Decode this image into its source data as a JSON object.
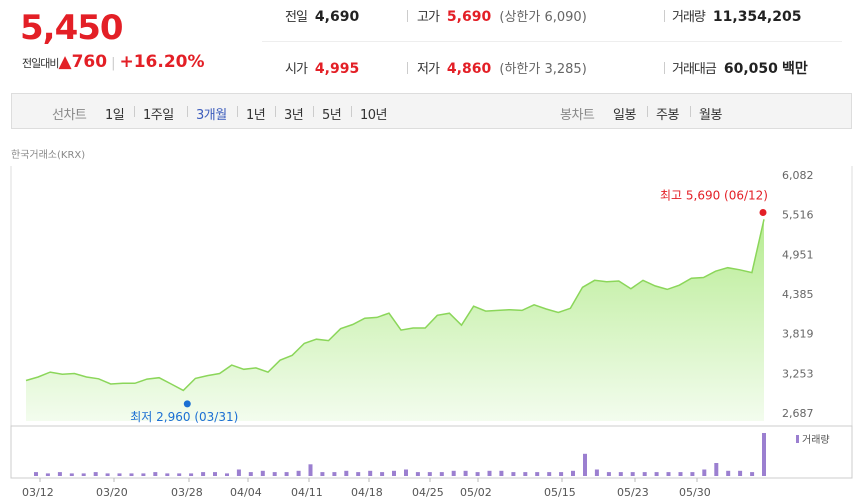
{
  "price": "5,450",
  "change": {
    "label": "전일대비",
    "arrow": "▲",
    "amount": "760",
    "percent": "+16.20%"
  },
  "stats": {
    "prev_close": {
      "label": "전일",
      "value": "4,690"
    },
    "high": {
      "label": "고가",
      "value": "5,690",
      "sub_label": "상한가",
      "sub_value": "6,090"
    },
    "volume": {
      "label": "거래량",
      "value": "11,354,205"
    },
    "open": {
      "label": "시가",
      "value": "4,995"
    },
    "low": {
      "label": "저가",
      "value": "4,860",
      "sub_label": "하한가",
      "sub_value": "3,285"
    },
    "trade_value": {
      "label": "거래대금",
      "value": "60,050",
      "unit": "백만"
    }
  },
  "tabs": {
    "line_label": "선차트",
    "line_periods": [
      "1일",
      "1주일",
      "3개월",
      "1년",
      "3년",
      "5년",
      "10년"
    ],
    "active_period": "3개월",
    "candle_label": "봉차트",
    "candle_periods": [
      "일봉",
      "주봉",
      "월봉"
    ]
  },
  "source": "한국거래소(KRX)",
  "colors": {
    "up": "#e31f26",
    "active_tab": "#3c5cbc",
    "line": "#8bd65a",
    "volume": "#9b7fd0",
    "low_marker": "#1b6fd3"
  },
  "chart_data": {
    "type": "area",
    "title": "",
    "x_tick_labels": [
      "03/12",
      "03/20",
      "03/28",
      "04/04",
      "04/11",
      "04/18",
      "04/25",
      "05/02",
      "05/15",
      "05/23",
      "05/30"
    ],
    "y_tick_labels": [
      "6,082",
      "5,516",
      "4,951",
      "4,385",
      "3,819",
      "3,253",
      "2,687"
    ],
    "ylim": [
      2687,
      6082
    ],
    "price_series": [
      3150,
      3200,
      3270,
      3240,
      3250,
      3200,
      3175,
      3100,
      3110,
      3110,
      3170,
      3190,
      3100,
      3010,
      3180,
      3220,
      3250,
      3370,
      3310,
      3330,
      3270,
      3440,
      3510,
      3680,
      3740,
      3720,
      3890,
      3950,
      4040,
      4050,
      4110,
      3870,
      3900,
      3900,
      4080,
      4110,
      3940,
      4210,
      4140,
      4150,
      4160,
      4150,
      4230,
      4170,
      4120,
      4180,
      4480,
      4580,
      4560,
      4570,
      4460,
      4580,
      4500,
      4450,
      4510,
      4610,
      4620,
      4710,
      4760,
      4730,
      4690,
      5450
    ],
    "volume_series": [
      3,
      2,
      3,
      2,
      2,
      3,
      2,
      2,
      2,
      2,
      3,
      2,
      2,
      2,
      3,
      3,
      2,
      5,
      3,
      4,
      3,
      3,
      4,
      9,
      3,
      3,
      4,
      3,
      4,
      3,
      4,
      5,
      3,
      3,
      3,
      4,
      4,
      3,
      4,
      4,
      3,
      3,
      3,
      3,
      3,
      4,
      17,
      5,
      3,
      3,
      3,
      3,
      3,
      3,
      3,
      3,
      5,
      10,
      4,
      4,
      3,
      33
    ],
    "annotations": {
      "high": {
        "text": "최고 5,690 (06/12)",
        "value": 5690
      },
      "low": {
        "text": "최저 2,960 (03/31)",
        "value": 2960
      }
    },
    "volume_legend": "거래량",
    "grid": false
  }
}
